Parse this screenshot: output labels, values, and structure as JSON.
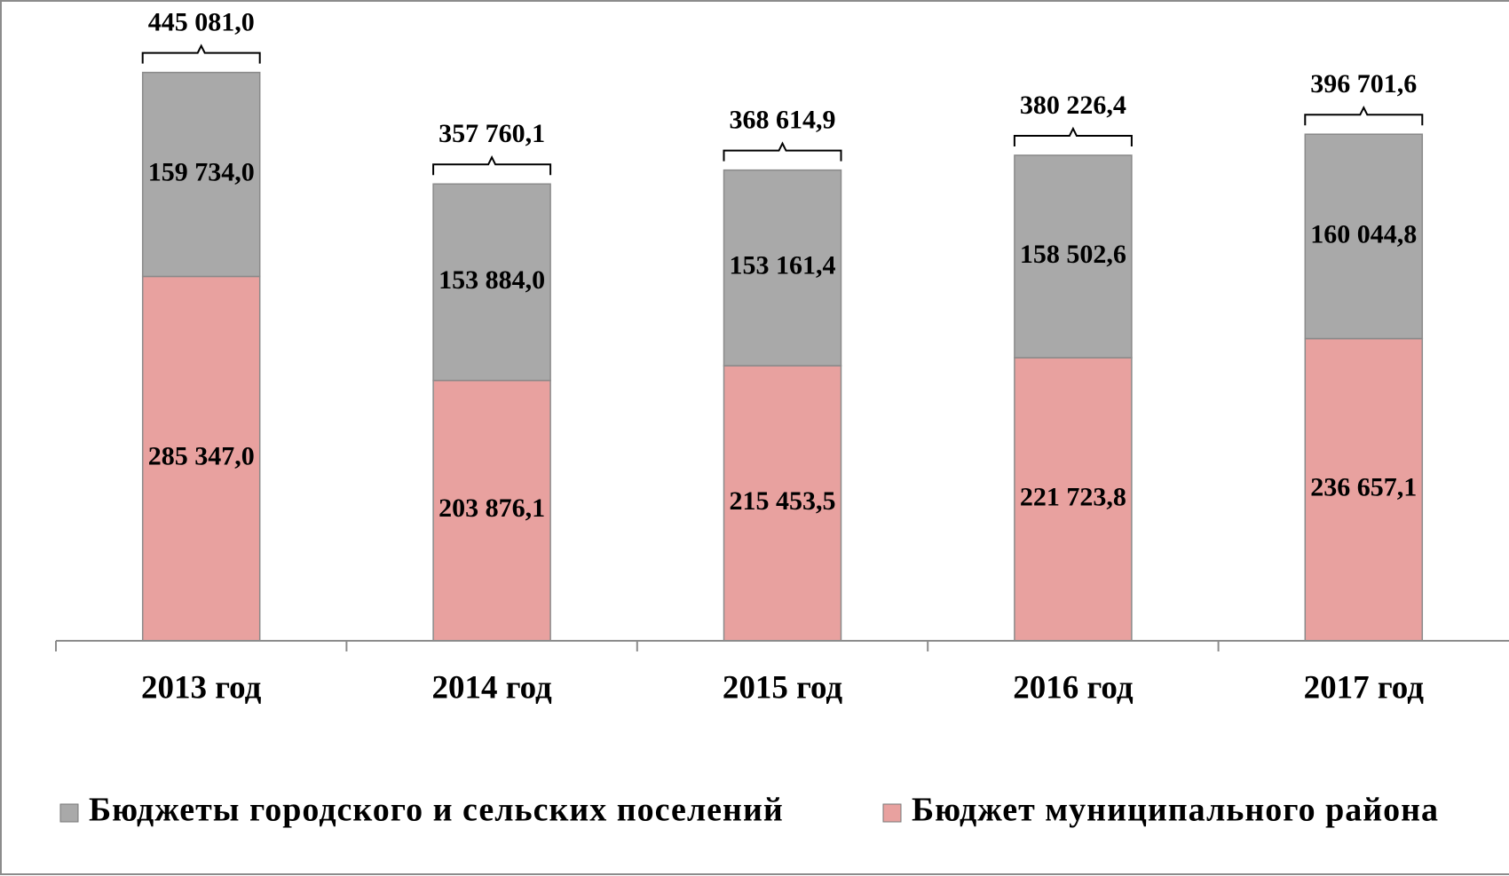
{
  "chart_data": {
    "type": "stacked_bar",
    "categories": [
      "2013 год",
      "2014 год",
      "2015 год",
      "2016 год",
      "2017 год"
    ],
    "series": [
      {
        "name": "Бюджеты городского и сельских поселений",
        "color": "#a9a9a9",
        "values": [
          159734.0,
          153884.0,
          153161.4,
          158502.6,
          160044.8
        ],
        "value_labels": [
          "159 734,0",
          "153 884,0",
          "153 161,4",
          "158 502,6",
          "160 044,8"
        ]
      },
      {
        "name": "Бюджет муниципального района",
        "color": "#e8a19f",
        "values": [
          285347.0,
          203876.1,
          215453.5,
          221723.8,
          236657.1
        ],
        "value_labels": [
          "285 347,0",
          "203 876,1",
          "215 453,5",
          "221 723,8",
          "236 657,1"
        ]
      }
    ],
    "totals": [
      445081.0,
      357760.1,
      368614.9,
      380226.4,
      396701.6
    ],
    "total_labels": [
      "445 081,0",
      "357 760,1",
      "368 614,9",
      "380 226,4",
      "396 701,6"
    ],
    "ylim": [
      0,
      490000
    ],
    "legend": "bottom"
  }
}
